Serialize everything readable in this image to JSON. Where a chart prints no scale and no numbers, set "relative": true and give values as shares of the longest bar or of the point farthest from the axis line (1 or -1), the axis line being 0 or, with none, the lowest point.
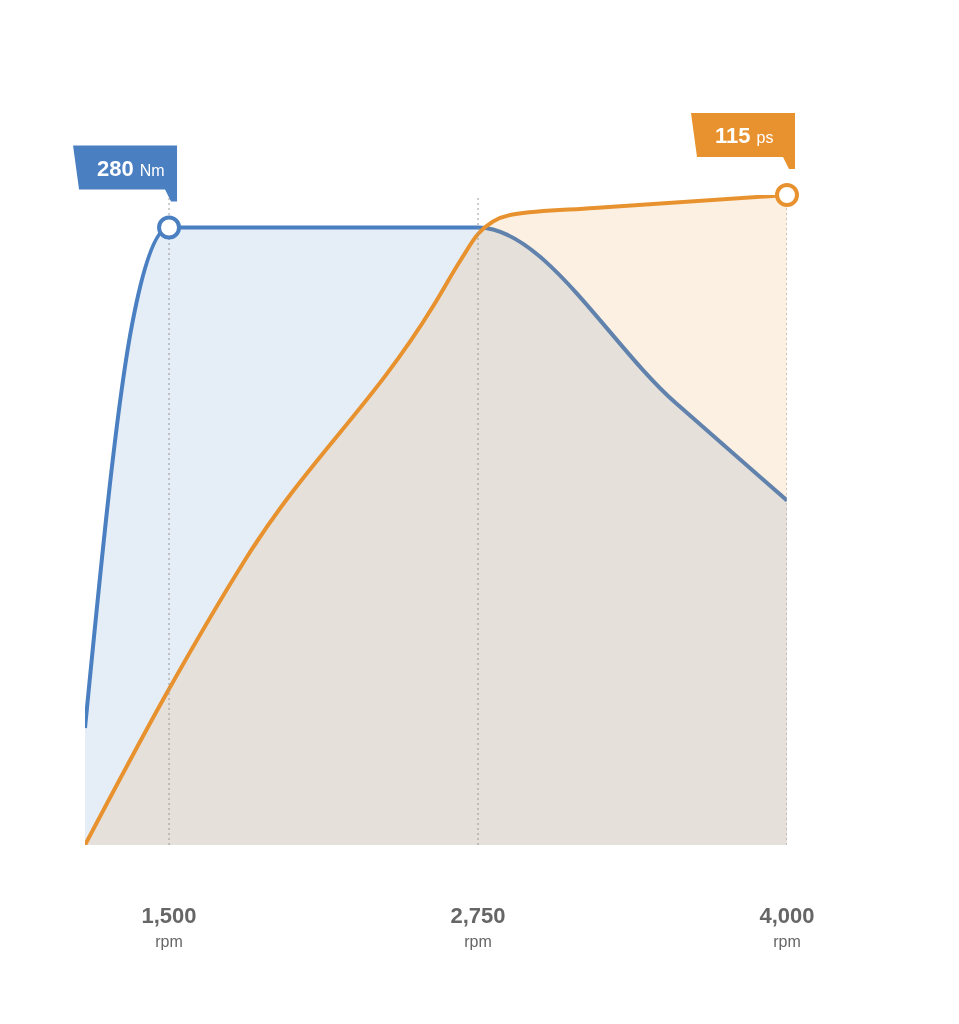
{
  "chart_data": {
    "type": "area",
    "relative": true,
    "grid": "x",
    "line_style": "solid",
    "legend": false,
    "xlim": [
      1160,
      4000
    ],
    "xticks": [
      {
        "value": 1500,
        "label": "1,500 rpm"
      },
      {
        "value": 2750,
        "label": "2,750 rpm"
      },
      {
        "value": 4000,
        "label": "4,000 rpm"
      }
    ],
    "series": [
      {
        "color": "#4a7fc1",
        "x": [
          1160,
          1350,
          1500,
          2750,
          3550,
          4000
        ],
        "values": [
          0.18,
          0.8,
          0.95,
          0.95,
          0.68,
          0.53
        ]
      },
      {
        "color": "#e8922f",
        "x": [
          1160,
          1500,
          1810,
          2570,
          2680,
          2750,
          2890,
          3220,
          4000
        ],
        "values": [
          0,
          0.24,
          0.44,
          0.83,
          0.9,
          0.94,
          0.97,
          0.98,
          1
        ]
      }
    ],
    "annotations": [
      {
        "text": "280 Nm",
        "x": 1500,
        "y": 0.95
      },
      {
        "text": "115 ps",
        "x": 4000,
        "y": 1
      }
    ]
  }
}
